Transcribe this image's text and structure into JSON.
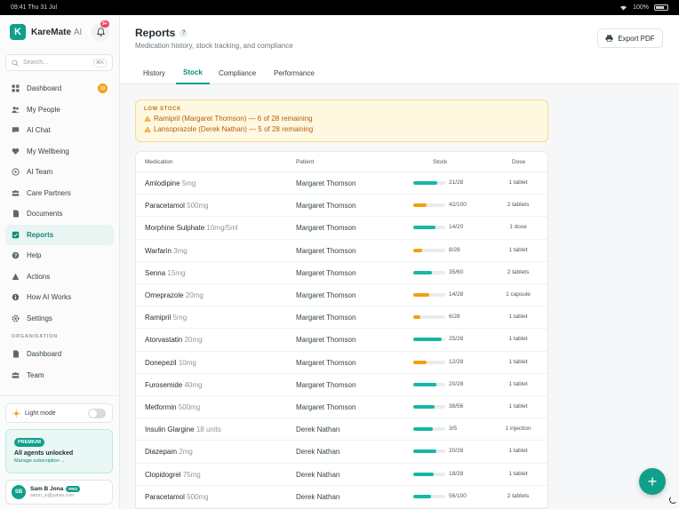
{
  "status_bar": {
    "time": "09:41",
    "date": "Thu 31 Jul",
    "battery": "100%"
  },
  "brand": {
    "logo_letter": "K",
    "name": "KareMate",
    "suffix": "AI",
    "notification_count": "9+"
  },
  "search": {
    "placeholder": "Search...",
    "shortcut": "⌘K"
  },
  "sidebar": {
    "items": [
      {
        "label": "Dashboard",
        "icon": "grid-icon",
        "badge": "10"
      },
      {
        "label": "My People",
        "icon": "people-icon"
      },
      {
        "label": "AI Chat",
        "icon": "chat-icon"
      },
      {
        "label": "My Wellbeing",
        "icon": "heart-icon"
      },
      {
        "label": "AI Team",
        "icon": "team-icon"
      },
      {
        "label": "Care Partners",
        "icon": "partners-icon"
      },
      {
        "label": "Documents",
        "icon": "document-icon"
      },
      {
        "label": "Reports",
        "icon": "report-icon",
        "active": true
      },
      {
        "label": "Help",
        "icon": "help-icon"
      },
      {
        "label": "Actions",
        "icon": "actions-icon"
      },
      {
        "label": "How AI Works",
        "icon": "info-icon"
      },
      {
        "label": "Settings",
        "icon": "gear-icon"
      }
    ],
    "section_label": "ORGANISATION",
    "org_items": [
      {
        "label": "Dashboard",
        "icon": "grid-icon"
      },
      {
        "label": "Team",
        "icon": "team-icon"
      }
    ]
  },
  "light_mode": {
    "label": "Light mode"
  },
  "premium": {
    "tag": "PREMIUM",
    "title": "All agents unlocked",
    "link": "Manage subscription →"
  },
  "user": {
    "initials": "SB",
    "name": "Sam B Jona",
    "plan": "PRO",
    "email": "aaron_ni@yahoo.com"
  },
  "header": {
    "title": "Reports",
    "help": "?",
    "subtitle": "Medication history, stock tracking, and compliance",
    "export_label": "Export PDF"
  },
  "tabs": [
    {
      "label": "History"
    },
    {
      "label": "Stock",
      "active": true
    },
    {
      "label": "Compliance"
    },
    {
      "label": "Performance"
    }
  ],
  "alert": {
    "heading": "LOW STOCK",
    "lines": [
      "Ramipril (Margaret Thomson) — 6 of 28 remaining",
      "Lansoprazole (Derek Nathan) — 5 of 28 remaining"
    ]
  },
  "table": {
    "columns": {
      "medication": "Medication",
      "patient": "Patient",
      "stock": "Stock",
      "dose": "Dose"
    },
    "rows": [
      {
        "name": "Amlodipine",
        "strength": "5mg",
        "patient": "Margaret Thomson",
        "stock": "21/28",
        "level": 0.75,
        "color": "#14b8a6",
        "dose": "1 tablet"
      },
      {
        "name": "Paracetamol",
        "strength": "500mg",
        "patient": "Margaret Thomson",
        "stock": "42/100",
        "level": 0.42,
        "color": "#f59e0b",
        "dose": "2 tablets"
      },
      {
        "name": "Morphine Sulphate",
        "strength": "10mg/5ml",
        "patient": "Margaret Thomson",
        "stock": "14/20",
        "level": 0.7,
        "color": "#14b8a6",
        "dose": "1 dose"
      },
      {
        "name": "Warfarin",
        "strength": "3mg",
        "patient": "Margaret Thomson",
        "stock": "8/28",
        "level": 0.29,
        "color": "#f59e0b",
        "dose": "1 tablet"
      },
      {
        "name": "Senna",
        "strength": "15mg",
        "patient": "Margaret Thomson",
        "stock": "35/60",
        "level": 0.58,
        "color": "#14b8a6",
        "dose": "2 tablets"
      },
      {
        "name": "Omeprazole",
        "strength": "20mg",
        "patient": "Margaret Thomson",
        "stock": "14/28",
        "level": 0.5,
        "color": "#f59e0b",
        "dose": "1 capsule"
      },
      {
        "name": "Ramipril",
        "strength": "5mg",
        "patient": "Margaret Thomson",
        "stock": "6/28",
        "level": 0.21,
        "color": "#f59e0b",
        "dose": "1 tablet"
      },
      {
        "name": "Atorvastatin",
        "strength": "20mg",
        "patient": "Margaret Thomson",
        "stock": "25/28",
        "level": 0.89,
        "color": "#14b8a6",
        "dose": "1 tablet"
      },
      {
        "name": "Donepezil",
        "strength": "10mg",
        "patient": "Margaret Thomson",
        "stock": "12/28",
        "level": 0.43,
        "color": "#f59e0b",
        "dose": "1 tablet"
      },
      {
        "name": "Furosemide",
        "strength": "40mg",
        "patient": "Margaret Thomson",
        "stock": "20/28",
        "level": 0.71,
        "color": "#14b8a6",
        "dose": "1 tablet"
      },
      {
        "name": "Metformin",
        "strength": "500mg",
        "patient": "Margaret Thomson",
        "stock": "38/56",
        "level": 0.68,
        "color": "#14b8a6",
        "dose": "1 tablet"
      },
      {
        "name": "Insulin Glargine",
        "strength": "18 units",
        "patient": "Derek Nathan",
        "stock": "3/5",
        "level": 0.6,
        "color": "#14b8a6",
        "dose": "1 injection"
      },
      {
        "name": "Diazepam",
        "strength": "2mg",
        "patient": "Derek Nathan",
        "stock": "20/28",
        "level": 0.71,
        "color": "#14b8a6",
        "dose": "1 tablet"
      },
      {
        "name": "Clopidogrel",
        "strength": "75mg",
        "patient": "Derek Nathan",
        "stock": "18/28",
        "level": 0.64,
        "color": "#14b8a6",
        "dose": "1 tablet"
      },
      {
        "name": "Paracetamol",
        "strength": "500mg",
        "patient": "Derek Nathan",
        "stock": "56/100",
        "level": 0.56,
        "color": "#14b8a6",
        "dose": "2 tablets"
      }
    ]
  },
  "fab": {
    "label": "+"
  }
}
